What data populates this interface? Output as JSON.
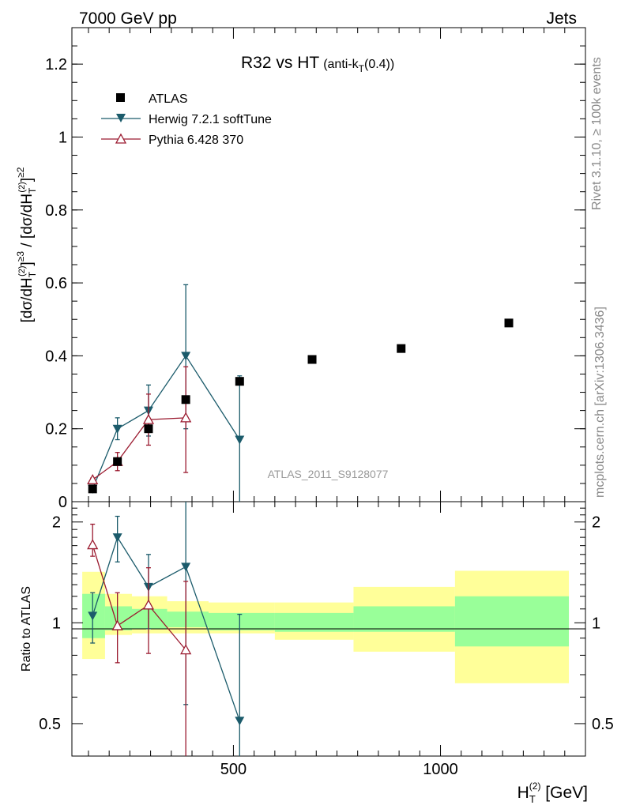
{
  "header": {
    "energy_label": "7000 GeV pp",
    "process_label": "Jets"
  },
  "side_labels": {
    "rivet": "Rivet 3.1.10, ≥ 100k events",
    "mcplots": "mcplots.cern.ch [arXiv:1306.3436]"
  },
  "colors": {
    "atlas": "#000000",
    "herwig": "#1b5b6b",
    "pythia": "#9b1b30",
    "band_inner": "#99ff99",
    "band_outer": "#ffff99"
  },
  "chart_data": [
    {
      "type": "scatter",
      "title": "R32 vs HT",
      "title_suffix": "(anti-k",
      "title_sub": "T",
      "title_tail": "(0.4))",
      "ylabel": "[dσ/dH_T^(2)]^≥3 / [dσ/dH_T^(2)]^≥2",
      "ylim": [
        0,
        1.3
      ],
      "yticks": [
        0,
        0.2,
        0.4,
        0.6,
        0.8,
        1,
        1.2
      ],
      "ytick_labels": [
        "0",
        "0.2",
        "0.4",
        "0.6",
        "0.8",
        "1",
        "1.2"
      ],
      "xlim": [
        110,
        1350
      ],
      "watermark": "ATLAS_2011_S9128077",
      "legend": [
        "ATLAS",
        "Herwig 7.2.1 softTune",
        "Pythia 6.428 370"
      ],
      "series": [
        {
          "name": "ATLAS",
          "marker": "square",
          "x": [
            160,
            220,
            295,
            385,
            515,
            690,
            905,
            1165
          ],
          "y": [
            0.035,
            0.11,
            0.2,
            0.28,
            0.33,
            0.39,
            0.42,
            0.49
          ]
        },
        {
          "name": "Herwig 7.2.1 softTune",
          "marker": "triangle-down",
          "x": [
            160,
            220,
            295,
            385,
            515
          ],
          "y": [
            0.035,
            0.2,
            0.25,
            0.4,
            0.17
          ],
          "err_lo": [
            0.005,
            0.03,
            0.07,
            0.2,
            0.17
          ],
          "err_hi": [
            0.005,
            0.03,
            0.07,
            0.195,
            0.175
          ]
        },
        {
          "name": "Pythia 6.428 370",
          "marker": "triangle-up-open",
          "x": [
            160,
            220,
            295,
            385
          ],
          "y": [
            0.06,
            0.11,
            0.225,
            0.23
          ],
          "err_lo": [
            0.005,
            0.025,
            0.07,
            0.15
          ],
          "err_hi": [
            0.005,
            0.025,
            0.07,
            0.14
          ]
        }
      ]
    },
    {
      "type": "scatter",
      "title": "Ratio to ATLAS",
      "ylabel": "Ratio to ATLAS",
      "xlabel": "H_T^(2) [GeV]",
      "ylim": [
        0.4,
        2.3
      ],
      "yticks": [
        0.5,
        1,
        2
      ],
      "ytick_labels": [
        "0.5",
        "1",
        "2"
      ],
      "xlim": [
        110,
        1350
      ],
      "xticks": [
        500,
        1000
      ],
      "xtick_labels": [
        "500",
        "1000"
      ],
      "bands": {
        "edges": [
          135,
          190,
          255,
          340,
          440,
          600,
          790,
          1035,
          1310
        ],
        "inner_lo": [
          0.9,
          0.95,
          0.96,
          0.97,
          0.95,
          0.94,
          0.94,
          0.85
        ],
        "inner_hi": [
          1.22,
          1.12,
          1.1,
          1.08,
          1.07,
          1.07,
          1.12,
          1.2
        ],
        "outer_lo": [
          0.78,
          0.92,
          0.93,
          0.93,
          0.93,
          0.89,
          0.82,
          0.66
        ],
        "outer_hi": [
          1.42,
          1.22,
          1.2,
          1.16,
          1.15,
          1.15,
          1.28,
          1.43
        ]
      },
      "series": [
        {
          "name": "Herwig 7.2.1 softTune",
          "marker": "triangle-down",
          "x": [
            160,
            220,
            295,
            385,
            515
          ],
          "y": [
            1.05,
            1.8,
            1.28,
            1.47,
            0.51
          ],
          "err_lo": [
            0.18,
            0.28,
            0.32,
            0.9,
            0.51
          ],
          "err_hi": [
            0.18,
            0.28,
            0.32,
            0.87,
            0.55
          ]
        },
        {
          "name": "Pythia 6.428 370",
          "marker": "triangle-up-open",
          "x": [
            160,
            220,
            295,
            385
          ],
          "y": [
            1.71,
            0.98,
            1.13,
            0.83
          ],
          "err_lo": [
            0.13,
            0.22,
            0.32,
            0.53
          ],
          "err_hi": [
            0.26,
            0.25,
            0.33,
            0.5
          ]
        }
      ]
    }
  ]
}
